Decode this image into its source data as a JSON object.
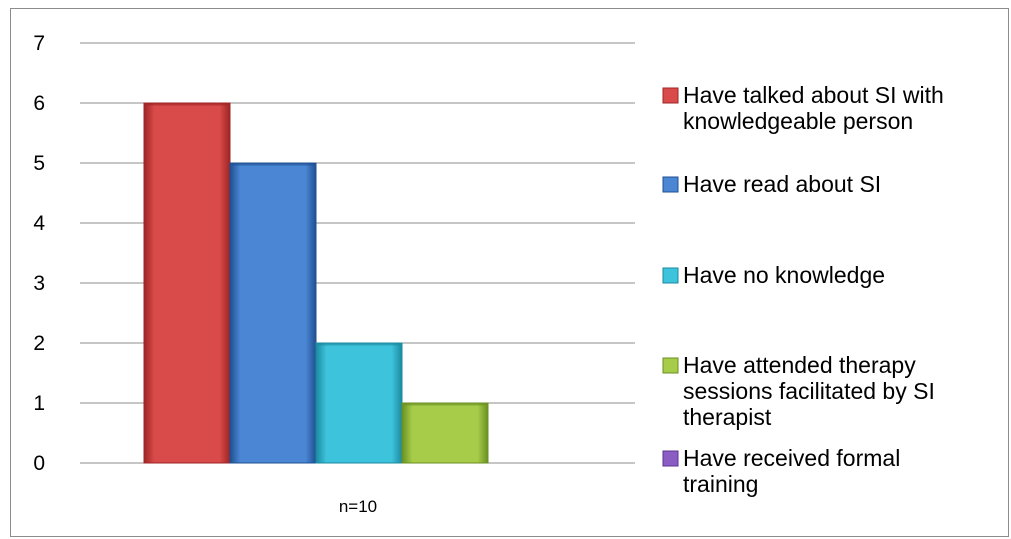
{
  "chart_data": {
    "type": "bar",
    "categories": [
      "n=10"
    ],
    "ylim": [
      0,
      7
    ],
    "yticks": [
      0,
      1,
      2,
      3,
      4,
      5,
      6,
      7
    ],
    "grid": true,
    "legend_position": "right",
    "series": [
      {
        "name": "Have talked about SI with knowledgeable person",
        "legend_lines": [
          "Have talked about SI with",
          "knowledgeable person"
        ],
        "value": 6,
        "color": "#d94a4a",
        "dark": "#9e2424"
      },
      {
        "name": "Have read about SI",
        "legend_lines": [
          "Have read about SI"
        ],
        "value": 5,
        "color": "#4a86d4",
        "dark": "#1f4f91"
      },
      {
        "name": "Have no knowledge",
        "legend_lines": [
          "Have no knowledge"
        ],
        "value": 2,
        "color": "#3ec3dc",
        "dark": "#1a8aa0"
      },
      {
        "name": "Have attended therapy sessions facilitated by SI therapist",
        "legend_lines": [
          "Have attended therapy",
          "sessions facilitated by SI",
          "therapist"
        ],
        "value": 1,
        "color": "#a6cc4a",
        "dark": "#6a8f22"
      },
      {
        "name": "Have received formal training",
        "legend_lines": [
          "Have received formal",
          "training"
        ],
        "value": 0,
        "color": "#8a5cc4",
        "dark": "#5a3390"
      }
    ]
  }
}
